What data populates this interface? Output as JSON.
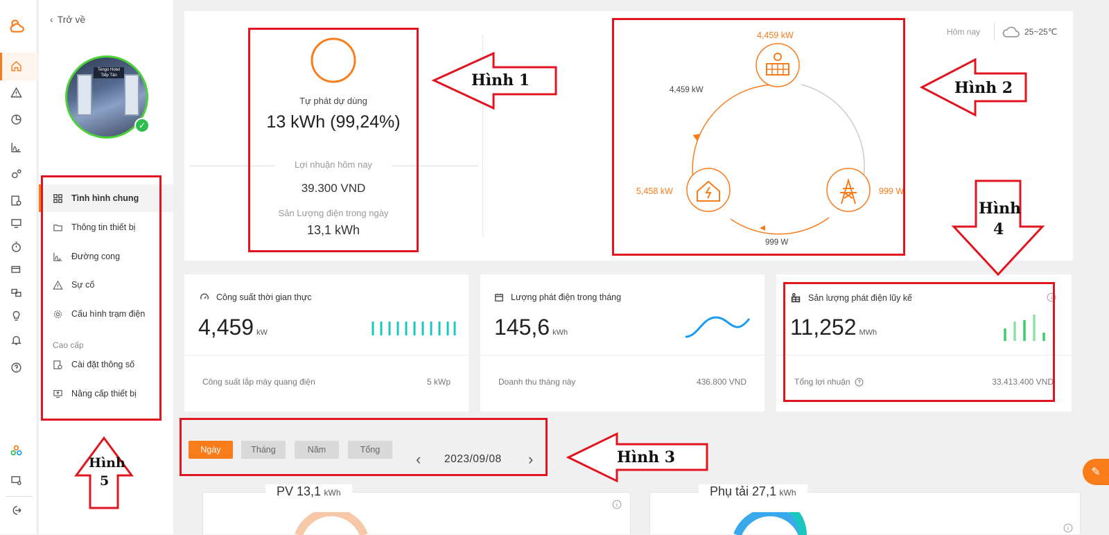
{
  "sidebar": {
    "back_label": "Trở về",
    "items": [
      {
        "label": "Tình hình chung"
      },
      {
        "label": "Thông tin thiết bị"
      },
      {
        "label": "Đường cong"
      },
      {
        "label": "Sự cố"
      },
      {
        "label": "Cấu hình trạm điện"
      },
      {
        "label": "Cài đặt thông số"
      },
      {
        "label": "Nâng cấp thiết bị"
      }
    ],
    "section_label": "Cao cấp",
    "avatar_sign": "Tengo Hotel Tiếp Tân"
  },
  "self_use": {
    "title": "Tự phát dự dùng",
    "value": "13 kWh (99,24%)",
    "profit_label": "Lợi nhuận hôm nay",
    "profit_value": "39.300 VND",
    "daily_label": "Sản Lượng điện trong ngày",
    "daily_value": "13,1 kWh"
  },
  "weather": {
    "label": "Hôm nay",
    "temp": "25~25℃"
  },
  "flow": {
    "pv_power": "4,459 kW",
    "left_flow": "4,459 kW",
    "home_power": "5,458 kW",
    "grid_power": "999 W",
    "bottom_flow": "999 W"
  },
  "stats": [
    {
      "title": "Công suất thời gian thực",
      "value": "4,459",
      "unit": "kW",
      "foot_label": "Công suất lắp máy quang điện",
      "foot_value": "5 kWp"
    },
    {
      "title": "Lượng phát điện trong tháng",
      "value": "145,6",
      "unit": "kWh",
      "foot_label": "Doanh thu tháng này",
      "foot_value": "436.800 VND"
    },
    {
      "title": "Sản lượng phát điện lũy kế",
      "value": "11,252",
      "unit": "MWh",
      "foot_label": "Tổng lợi nhuận",
      "foot_value": "33.413.400 VND"
    }
  ],
  "tabs": [
    {
      "label": "Ngày"
    },
    {
      "label": "Tháng"
    },
    {
      "label": "Năm"
    },
    {
      "label": "Tổng"
    }
  ],
  "date": "2023/09/08",
  "bottom": {
    "pv_title": "PV 13,1",
    "pv_unit": "kWh",
    "load_title": "Phụ tải 27,1",
    "load_unit": "kWh"
  },
  "annotations": {
    "h1": "Hình 1",
    "h2": "Hình 2",
    "h3": "Hình 3",
    "h4_line1": "Hình",
    "h4_line2": "4",
    "h5_line1": "Hình",
    "h5_line2": "5"
  },
  "colors": {
    "accent": "#f97c1b",
    "annotation": "#e0151f",
    "online": "#2ebd4e",
    "teal": "#19c7c0",
    "blue": "#1a9cf0",
    "green": "#3ecf6a"
  }
}
